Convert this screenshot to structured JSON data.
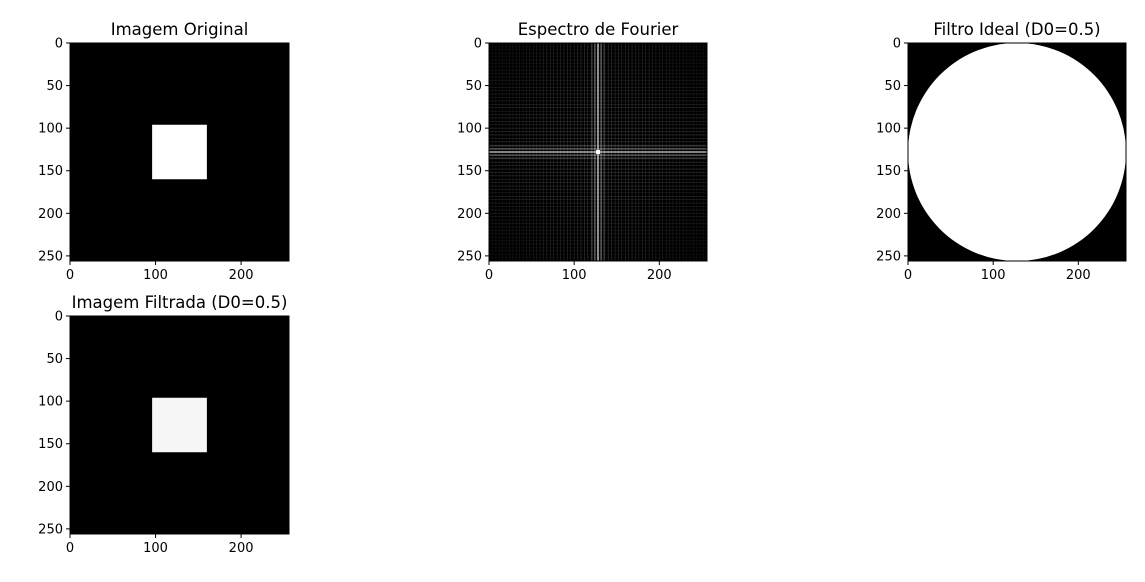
{
  "chart_data": [
    {
      "type": "heatmap",
      "title": "Imagem Original",
      "image": "square",
      "xlim": [
        0,
        256
      ],
      "ylim": [
        256,
        0
      ],
      "xticks": [
        0,
        100,
        200
      ],
      "yticks": [
        0,
        50,
        100,
        150,
        200,
        250
      ],
      "square_rows": [
        96,
        160
      ],
      "square_cols": [
        96,
        160
      ],
      "square_intensity": 1.0
    },
    {
      "type": "heatmap",
      "title": "Espectro de Fourier",
      "image": "spectrum",
      "xlim": [
        0,
        256
      ],
      "ylim": [
        256,
        0
      ],
      "xticks": [
        0,
        100,
        200
      ],
      "yticks": [
        0,
        50,
        100,
        150,
        200,
        250
      ],
      "center": [
        128,
        128
      ]
    },
    {
      "type": "heatmap",
      "title": "Filtro Ideal (D0=0.5)",
      "image": "disk",
      "xlim": [
        0,
        256
      ],
      "ylim": [
        256,
        0
      ],
      "xticks": [
        0,
        100,
        200
      ],
      "yticks": [
        0,
        50,
        100,
        150,
        200,
        250
      ],
      "center": [
        128,
        128
      ],
      "radius": 128
    },
    {
      "type": "heatmap",
      "title": "Imagem Filtrada (D0=0.5)",
      "image": "square",
      "xlim": [
        0,
        256
      ],
      "ylim": [
        256,
        0
      ],
      "xticks": [
        0,
        100,
        200
      ],
      "yticks": [
        0,
        50,
        100,
        150,
        200,
        250
      ],
      "square_rows": [
        96,
        160
      ],
      "square_cols": [
        96,
        160
      ],
      "square_intensity": 0.97
    }
  ],
  "colors": {
    "background": "#000000",
    "foreground": "#ffffff",
    "spectrum_line": "#cccccc"
  }
}
